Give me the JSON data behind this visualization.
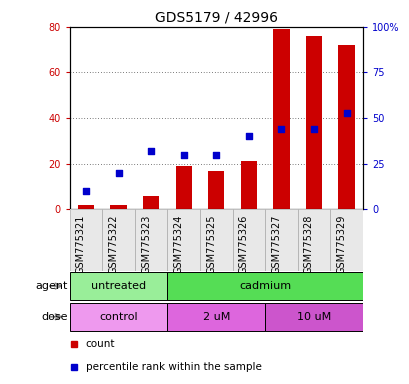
{
  "title": "GDS5179 / 42996",
  "samples": [
    "GSM775321",
    "GSM775322",
    "GSM775323",
    "GSM775324",
    "GSM775325",
    "GSM775326",
    "GSM775327",
    "GSM775328",
    "GSM775329"
  ],
  "counts": [
    2,
    2,
    6,
    19,
    17,
    21,
    79,
    76,
    72
  ],
  "percentiles": [
    10,
    20,
    32,
    30,
    30,
    40,
    44,
    44,
    53
  ],
  "bar_color": "#cc0000",
  "dot_color": "#0000cc",
  "left_ylim": [
    0,
    80
  ],
  "right_ylim": [
    0,
    100
  ],
  "left_yticks": [
    0,
    20,
    40,
    60,
    80
  ],
  "right_yticks": [
    0,
    25,
    50,
    75,
    100
  ],
  "right_yticklabels": [
    "0",
    "25",
    "50",
    "75",
    "100%"
  ],
  "agent_groups": [
    {
      "label": "untreated",
      "start": 0,
      "end": 3,
      "color": "#99ee99"
    },
    {
      "label": "cadmium",
      "start": 3,
      "end": 9,
      "color": "#55dd55"
    }
  ],
  "dose_groups": [
    {
      "label": "control",
      "start": 0,
      "end": 3,
      "color": "#ee99ee"
    },
    {
      "label": "2 uM",
      "start": 3,
      "end": 6,
      "color": "#dd66dd"
    },
    {
      "label": "10 uM",
      "start": 6,
      "end": 9,
      "color": "#cc55cc"
    }
  ],
  "legend_items": [
    {
      "label": "count",
      "color": "#cc0000"
    },
    {
      "label": "percentile rank within the sample",
      "color": "#0000cc"
    }
  ],
  "title_fontsize": 10,
  "tick_fontsize": 7,
  "label_fontsize": 8,
  "bar_width": 0.5,
  "background_color": "#ffffff",
  "left_tick_color": "#cc0000",
  "right_tick_color": "#0000cc"
}
